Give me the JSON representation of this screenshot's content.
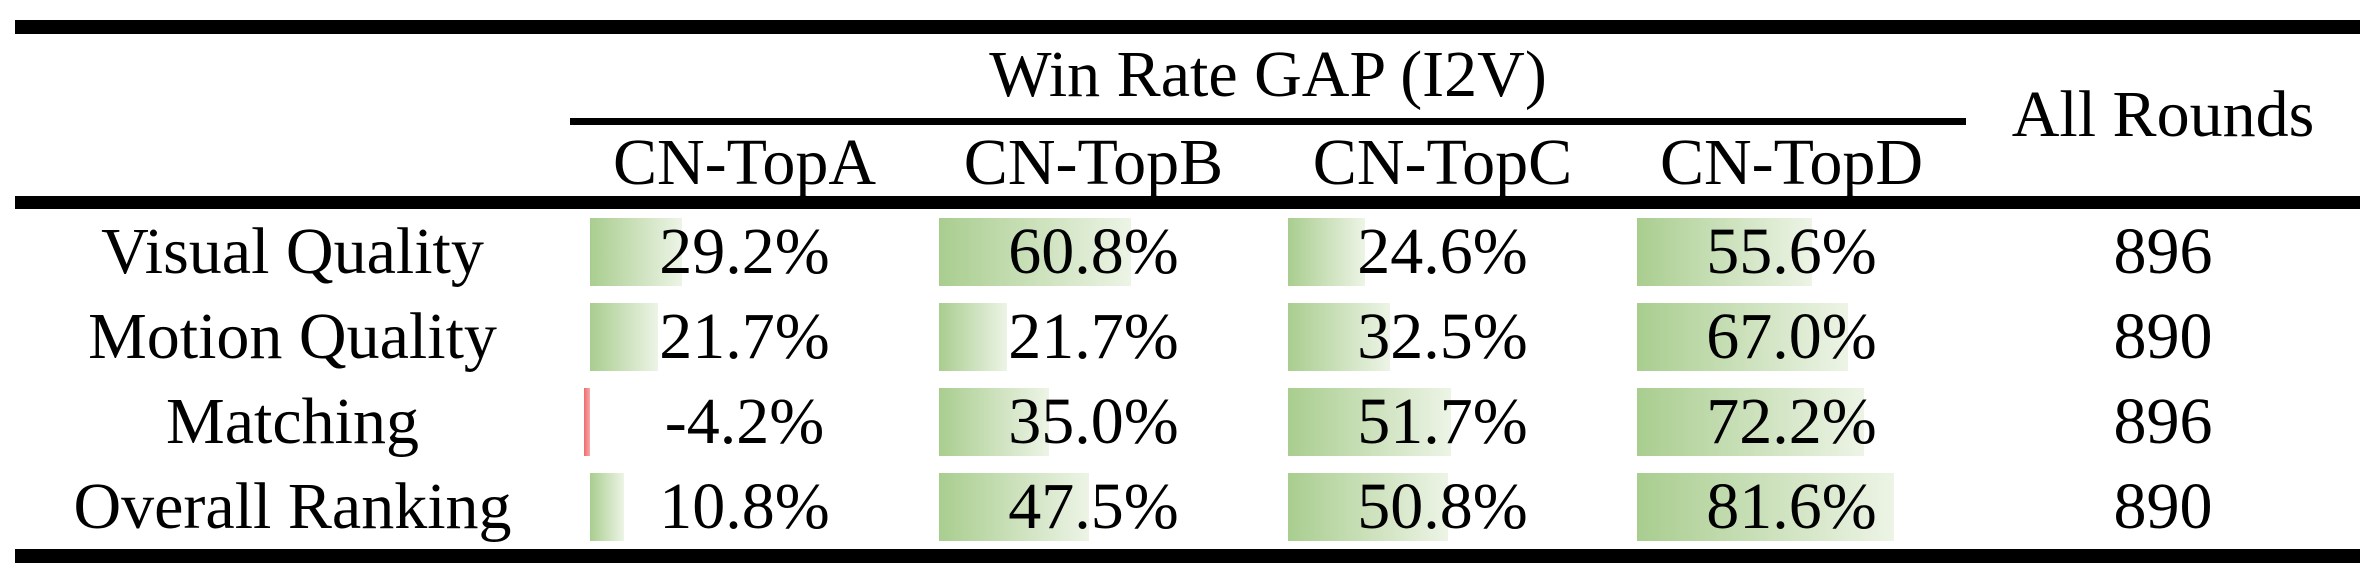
{
  "table": {
    "group_header": "Win Rate GAP (I2V)",
    "all_rounds_header": "All Rounds",
    "columns": [
      "CN-TopA",
      "CN-TopB",
      "CN-TopC",
      "CN-TopD"
    ],
    "rows": [
      {
        "label": "Visual Quality",
        "values": [
          "29.2%",
          "60.8%",
          "24.6%",
          "55.6%"
        ],
        "bar_values": [
          29.2,
          60.8,
          24.6,
          55.6
        ],
        "all_rounds": "896"
      },
      {
        "label": "Motion Quality",
        "values": [
          "21.7%",
          "21.7%",
          "32.5%",
          "67.0%"
        ],
        "bar_values": [
          21.7,
          21.7,
          32.5,
          67.0
        ],
        "all_rounds": "890"
      },
      {
        "label": "Matching",
        "values": [
          "-4.2%",
          "35.0%",
          "51.7%",
          "72.2%"
        ],
        "bar_values": [
          -4.2,
          35.0,
          51.7,
          72.2
        ],
        "all_rounds": "896"
      },
      {
        "label": "Overall Ranking",
        "values": [
          "10.8%",
          "47.5%",
          "50.8%",
          "81.6%"
        ],
        "bar_values": [
          10.8,
          47.5,
          50.8,
          81.6
        ],
        "all_rounds": "890"
      }
    ],
    "colors": {
      "text": "#000000",
      "rule": "#000000",
      "bar_green_start": "#a9cd8f",
      "bar_green_end": "#edf4e6",
      "bar_red_start": "#ee6b6b",
      "bar_red_end": "#f8a9a9"
    }
  },
  "chart_data": {
    "type": "table",
    "title": "Win Rate GAP (I2V)",
    "row_labels": [
      "Visual Quality",
      "Motion Quality",
      "Matching",
      "Overall Ranking"
    ],
    "columns": [
      "CN-TopA",
      "CN-TopB",
      "CN-TopC",
      "CN-TopD",
      "All Rounds"
    ],
    "series": [
      {
        "name": "CN-TopA",
        "values": [
          29.2,
          21.7,
          -4.2,
          10.8
        ]
      },
      {
        "name": "CN-TopB",
        "values": [
          60.8,
          21.7,
          35.0,
          47.5
        ]
      },
      {
        "name": "CN-TopC",
        "values": [
          24.6,
          32.5,
          51.7,
          50.8
        ]
      },
      {
        "name": "CN-TopD",
        "values": [
          55.6,
          67.0,
          72.2,
          81.6
        ]
      },
      {
        "name": "All Rounds",
        "values": [
          896,
          890,
          896,
          890
        ]
      }
    ],
    "value_unit": "%",
    "bar_axis_range": [
      0,
      100
    ],
    "style_note": "in-cell gradient data bars, green for positive, red for negative"
  }
}
